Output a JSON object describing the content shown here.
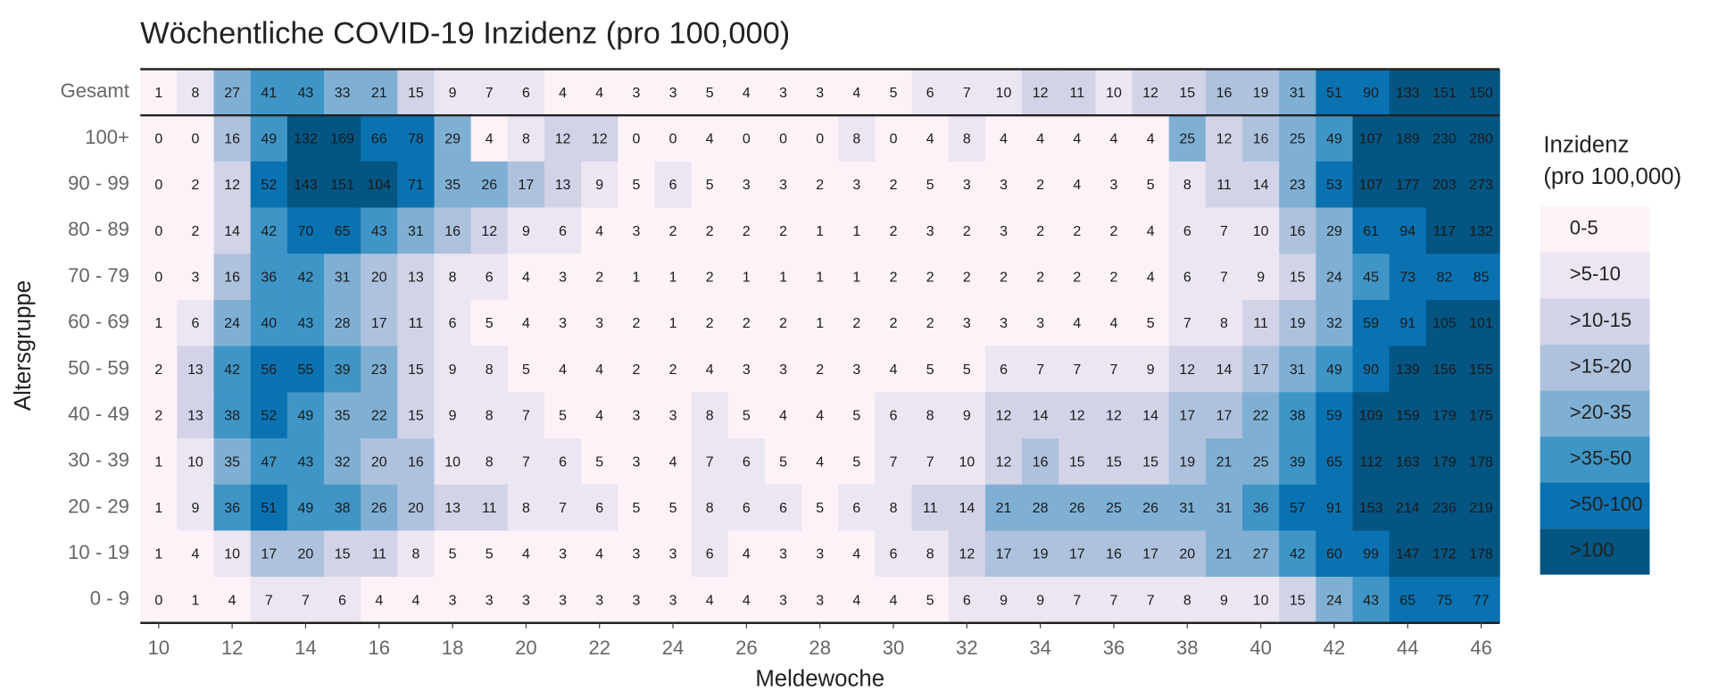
{
  "chart_data": {
    "type": "heatmap",
    "title": "Wöchentliche COVID-19 Inzidenz (pro 100,000)",
    "xlabel": "Meldewoche",
    "ylabel": "Altersgruppe",
    "x": [
      10,
      11,
      12,
      13,
      14,
      15,
      16,
      17,
      18,
      19,
      20,
      21,
      22,
      23,
      24,
      25,
      26,
      27,
      28,
      29,
      30,
      31,
      32,
      33,
      34,
      35,
      36,
      37,
      38,
      39,
      40,
      41,
      42,
      43,
      44,
      45,
      46
    ],
    "xticks": [
      10,
      12,
      14,
      16,
      18,
      20,
      22,
      24,
      26,
      28,
      30,
      32,
      34,
      36,
      38,
      40,
      42,
      44,
      46
    ],
    "categories": [
      "Gesamt",
      "100+",
      "90 - 99",
      "80 - 89",
      "70 - 79",
      "60 - 69",
      "50 - 59",
      "40 - 49",
      "30 - 39",
      "20 - 29",
      "10 - 19",
      "0 - 9"
    ],
    "values": [
      [
        1,
        8,
        27,
        41,
        43,
        33,
        21,
        15,
        9,
        7,
        6,
        4,
        4,
        3,
        3,
        5,
        4,
        3,
        3,
        4,
        5,
        6,
        7,
        10,
        12,
        11,
        10,
        12,
        15,
        16,
        19,
        31,
        51,
        90,
        133,
        151,
        150
      ],
      [
        0,
        0,
        16,
        49,
        132,
        169,
        66,
        78,
        29,
        4,
        8,
        12,
        12,
        0,
        0,
        4,
        0,
        0,
        0,
        8,
        0,
        4,
        8,
        4,
        4,
        4,
        4,
        4,
        25,
        12,
        16,
        25,
        49,
        107,
        189,
        230,
        280
      ],
      [
        0,
        2,
        12,
        52,
        143,
        151,
        104,
        71,
        35,
        26,
        17,
        13,
        9,
        5,
        6,
        5,
        3,
        3,
        2,
        3,
        2,
        5,
        3,
        3,
        2,
        4,
        3,
        5,
        8,
        11,
        14,
        23,
        53,
        107,
        177,
        203,
        273
      ],
      [
        0,
        2,
        14,
        42,
        70,
        65,
        43,
        31,
        16,
        12,
        9,
        6,
        4,
        3,
        2,
        2,
        2,
        2,
        1,
        1,
        2,
        3,
        2,
        3,
        2,
        2,
        2,
        4,
        6,
        7,
        10,
        16,
        29,
        61,
        94,
        117,
        132
      ],
      [
        0,
        3,
        16,
        36,
        42,
        31,
        20,
        13,
        8,
        6,
        4,
        3,
        2,
        1,
        1,
        2,
        1,
        1,
        1,
        1,
        2,
        2,
        2,
        2,
        2,
        2,
        2,
        4,
        6,
        7,
        9,
        15,
        24,
        45,
        73,
        82,
        85
      ],
      [
        1,
        6,
        24,
        40,
        43,
        28,
        17,
        11,
        6,
        5,
        4,
        3,
        3,
        2,
        1,
        2,
        2,
        2,
        1,
        2,
        2,
        2,
        3,
        3,
        3,
        4,
        4,
        5,
        7,
        8,
        11,
        19,
        32,
        59,
        91,
        105,
        101
      ],
      [
        2,
        13,
        42,
        56,
        55,
        39,
        23,
        15,
        9,
        8,
        5,
        4,
        4,
        2,
        2,
        4,
        3,
        3,
        2,
        3,
        4,
        5,
        5,
        6,
        7,
        7,
        7,
        9,
        12,
        14,
        17,
        31,
        49,
        90,
        139,
        156,
        155
      ],
      [
        2,
        13,
        38,
        52,
        49,
        35,
        22,
        15,
        9,
        8,
        7,
        5,
        4,
        3,
        3,
        8,
        5,
        4,
        4,
        5,
        6,
        8,
        9,
        12,
        14,
        12,
        12,
        14,
        17,
        17,
        22,
        38,
        59,
        109,
        159,
        179,
        175
      ],
      [
        1,
        10,
        35,
        47,
        43,
        32,
        20,
        16,
        10,
        8,
        7,
        6,
        5,
        3,
        4,
        7,
        6,
        5,
        4,
        5,
        7,
        7,
        10,
        12,
        16,
        15,
        15,
        15,
        19,
        21,
        25,
        39,
        65,
        112,
        163,
        179,
        178
      ],
      [
        1,
        9,
        36,
        51,
        49,
        38,
        26,
        20,
        13,
        11,
        8,
        7,
        6,
        5,
        5,
        8,
        6,
        6,
        5,
        6,
        8,
        11,
        14,
        21,
        28,
        26,
        25,
        26,
        31,
        31,
        36,
        57,
        91,
        153,
        214,
        236,
        219
      ],
      [
        1,
        4,
        10,
        17,
        20,
        15,
        11,
        8,
        5,
        5,
        4,
        3,
        4,
        3,
        3,
        6,
        4,
        3,
        3,
        4,
        6,
        8,
        12,
        17,
        19,
        17,
        16,
        17,
        20,
        21,
        27,
        42,
        60,
        99,
        147,
        172,
        178
      ],
      [
        0,
        1,
        4,
        7,
        7,
        6,
        4,
        4,
        3,
        3,
        3,
        3,
        3,
        3,
        3,
        4,
        4,
        3,
        3,
        4,
        4,
        5,
        6,
        9,
        9,
        7,
        7,
        7,
        8,
        9,
        10,
        15,
        24,
        43,
        65,
        75,
        77
      ]
    ],
    "legend_title": [
      "Inzidenz",
      "(pro 100,000)"
    ],
    "legend_labels": [
      "0-5",
      ">5-10",
      ">10-15",
      ">15-20",
      ">20-35",
      ">35-50",
      ">50-100",
      ">100"
    ],
    "bins": [
      5,
      10,
      15,
      20,
      35,
      50,
      100
    ],
    "colors": [
      "#fdf2f8",
      "#ebe6f1",
      "#d3d3e8",
      "#aec2de",
      "#7fb0d4",
      "#3f95c6",
      "#0a72b1",
      "#045582"
    ]
  }
}
